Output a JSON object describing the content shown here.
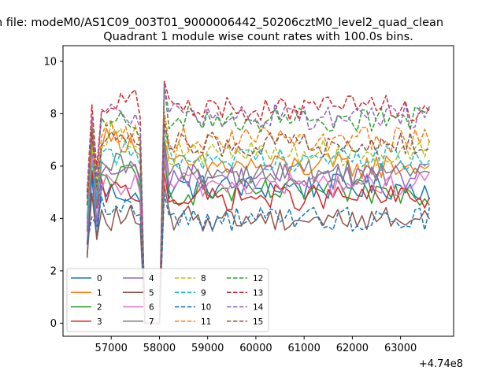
{
  "chart_data": {
    "type": "line",
    "suptitle": "n file: modeM0/AS1C09_003T01_9000006442_50206cztM0_level2_quad_clean",
    "title": "Quadrant 1 module wise count rates with 100.0s bins.",
    "xlabel": "",
    "ylabel": "",
    "x_offset_label": "+4.74e8",
    "xlim": [
      56000,
      64100
    ],
    "ylim": [
      -0.5,
      10.6
    ],
    "x_ticks": [
      57000,
      58000,
      59000,
      60000,
      61000,
      62000,
      63000
    ],
    "x_tick_labels": [
      "57000",
      "58000",
      "59000",
      "60000",
      "61000",
      "62000",
      "63000"
    ],
    "y_ticks": [
      0,
      2,
      4,
      6,
      8,
      10
    ],
    "y_tick_labels": [
      "0",
      "2",
      "4",
      "6",
      "8",
      "10"
    ],
    "grid": false,
    "legend_position": "lower-left",
    "legend_columns": 4,
    "x_start": 56500,
    "x_step": 100,
    "n_points": 72,
    "gap_indices": [
      12,
      13,
      14,
      15
    ],
    "series": [
      {
        "name": "0",
        "color": "#1f77b4",
        "style": "solid",
        "base": 5.0,
        "start": 2.5,
        "post": 5.2
      },
      {
        "name": "1",
        "color": "#ff7f0e",
        "style": "solid",
        "base": 7.0,
        "start": 4.5,
        "post": 6.0
      },
      {
        "name": "2",
        "color": "#2ca02c",
        "style": "solid",
        "base": 5.6,
        "start": 4.0,
        "post": 5.0
      },
      {
        "name": "3",
        "color": "#d62728",
        "style": "solid",
        "base": 5.0,
        "start": 3.5,
        "post": 4.8
      },
      {
        "name": "4",
        "color": "#9467bd",
        "style": "solid",
        "base": 5.8,
        "start": 3.0,
        "post": 5.6
      },
      {
        "name": "5",
        "color": "#8c564b",
        "style": "solid",
        "base": 4.0,
        "start": 2.5,
        "post": 4.0
      },
      {
        "name": "6",
        "color": "#e377c2",
        "style": "solid",
        "base": 5.3,
        "start": 3.8,
        "post": 5.3
      },
      {
        "name": "7",
        "color": "#7f7f7f",
        "style": "solid",
        "base": 6.0,
        "start": 3.5,
        "post": 5.8
      },
      {
        "name": "8",
        "color": "#bcbd22",
        "style": "dashed",
        "base": 7.2,
        "start": 4.5,
        "post": 6.5
      },
      {
        "name": "9",
        "color": "#17becf",
        "style": "dashed",
        "base": 6.5,
        "start": 4.0,
        "post": 6.3
      },
      {
        "name": "10",
        "color": "#1f77b4",
        "style": "dashed",
        "base": 4.4,
        "start": 3.0,
        "post": 4.0
      },
      {
        "name": "11",
        "color": "#ff7f0e",
        "style": "dashed",
        "base": 7.3,
        "start": 4.5,
        "post": 7.0
      },
      {
        "name": "12",
        "color": "#2ca02c",
        "style": "dashed",
        "base": 7.6,
        "start": 5.0,
        "post": 7.8
      },
      {
        "name": "13",
        "color": "#d62728",
        "style": "dashed",
        "base": 8.5,
        "start": 5.0,
        "post": 8.2
      },
      {
        "name": "14",
        "color": "#9467bd",
        "style": "dashed",
        "base": 8.0,
        "start": 4.8,
        "post": 7.9
      },
      {
        "name": "15",
        "color": "#8c564b",
        "style": "dashed",
        "base": 7.3,
        "start": 4.5,
        "post": 6.8
      }
    ]
  }
}
